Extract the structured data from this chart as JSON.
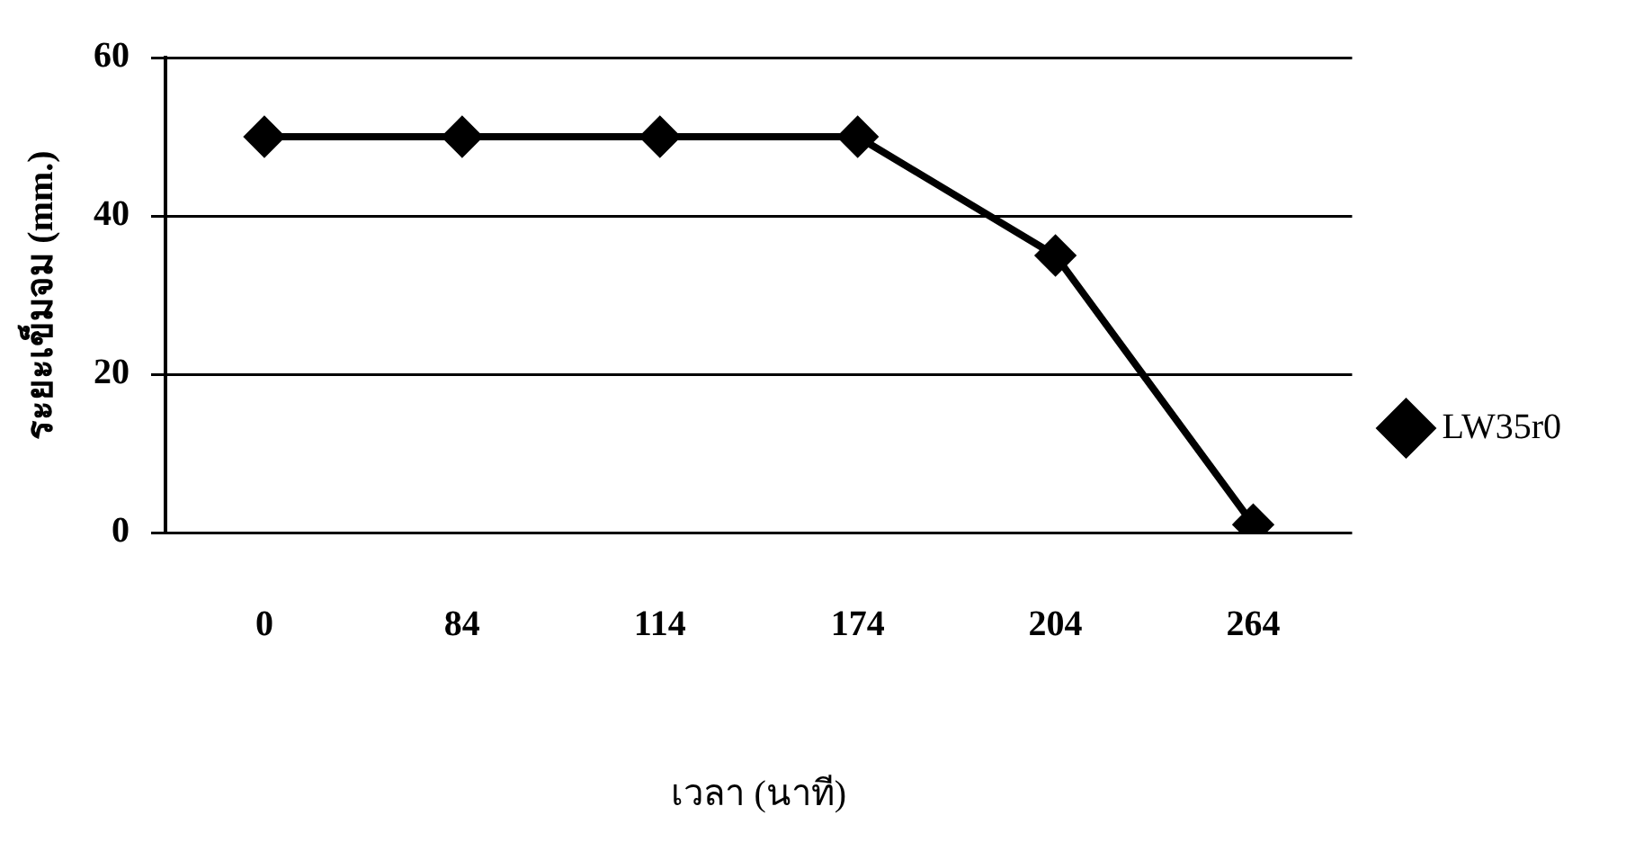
{
  "chart_data": {
    "type": "line",
    "xlabel": "เวลา (นาที)",
    "ylabel": "ระยะเข็มจม (mm.)",
    "categories": [
      "0",
      "84",
      "114",
      "174",
      "204",
      "264"
    ],
    "series": [
      {
        "name": "LW35r0",
        "color": "#000000",
        "values": [
          50,
          50,
          50,
          50,
          35,
          1
        ]
      }
    ],
    "ylim": [
      0,
      60
    ],
    "yticks": [
      0,
      20,
      40,
      60
    ],
    "grid": "y",
    "legend": "right",
    "marker": "diamond",
    "line_style": "solid"
  }
}
